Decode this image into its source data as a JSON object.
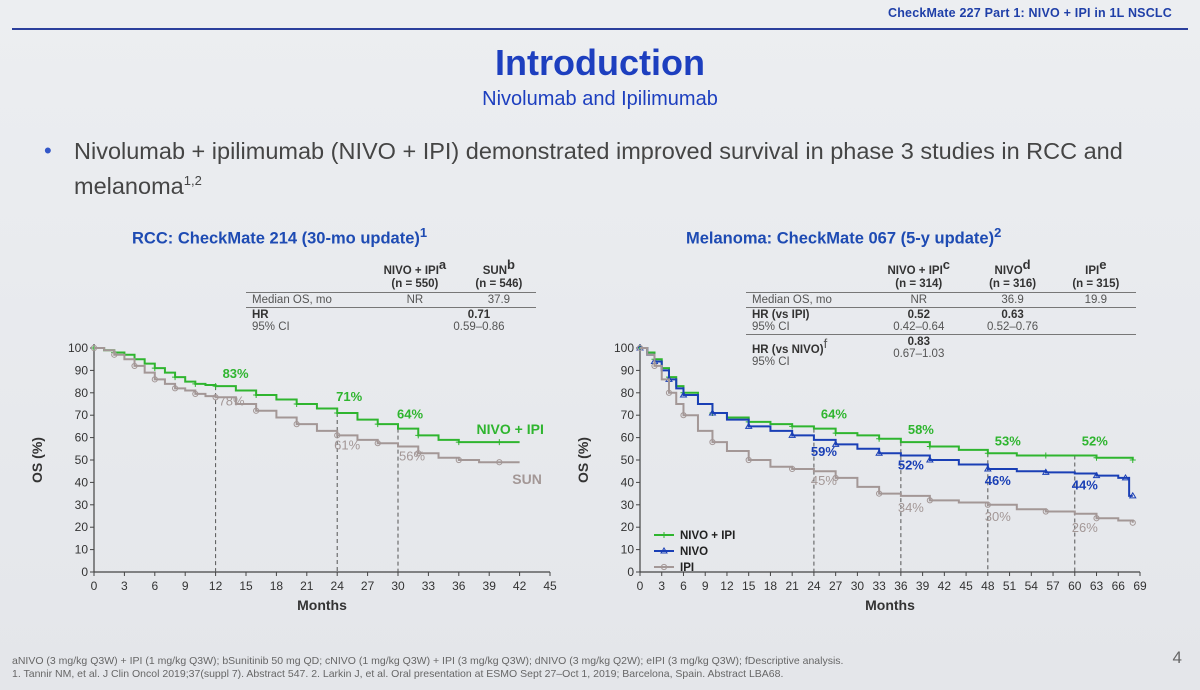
{
  "header": {
    "text": "CheckMate 227 Part 1: NIVO + IPI in 1L NSCLC"
  },
  "title": "Introduction",
  "subtitle": "Nivolumab and Ipilimumab",
  "bullet": {
    "text": "Nivolumab + ipilimumab (NIVO + IPI) demonstrated improved survival in phase 3 studies in RCC and melanoma",
    "sup": "1,2"
  },
  "rcc": {
    "title": "RCC: CheckMate 214 (30-mo update)",
    "title_sup": "1",
    "table": {
      "col1": "NIVO + IPI",
      "col1_sup": "a",
      "col1_n": "(n = 550)",
      "col2": "SUN",
      "col2_sup": "b",
      "col2_n": "(n = 546)",
      "row1_label": "Median OS, mo",
      "row1_v1": "NR",
      "row1_v2": "37.9",
      "hr_label": "HR",
      "hr_value": "0.71",
      "ci_label": "95% CI",
      "ci_value": "0.59–0.86"
    }
  },
  "mel": {
    "title": "Melanoma: CheckMate 067 (5-y update)",
    "title_sup": "2",
    "table": {
      "col1": "NIVO + IPI",
      "col1_sup": "c",
      "col1_n": "(n = 314)",
      "col2": "NIVO",
      "col2_sup": "d",
      "col2_n": "(n = 316)",
      "col3": "IPI",
      "col3_sup": "e",
      "col3_n": "(n = 315)",
      "row1_label": "Median OS, mo",
      "row1_v1": "NR",
      "row1_v2": "36.9",
      "row1_v3": "19.9",
      "hr1_label": "HR (vs IPI)",
      "hr1_v1": "0.52",
      "hr1_v2": "0.63",
      "ci1_label": "95% CI",
      "ci1_v1": "0.42–0.64",
      "ci1_v2": "0.52–0.76",
      "hr2_label": "HR (vs NIVO)",
      "hr2_sup": "f",
      "hr2_v1": "0.83",
      "ci2_label": "95% CI",
      "ci2_v1": "0.67–1.03"
    }
  },
  "chart_data": [
    {
      "type": "line",
      "title": "RCC: CheckMate 214 (30-mo update)",
      "xlabel": "Months",
      "ylabel": "OS (%)",
      "xlim": [
        0,
        45
      ],
      "ylim": [
        0,
        100
      ],
      "xticks": [
        0,
        3,
        6,
        9,
        12,
        15,
        18,
        21,
        24,
        27,
        30,
        33,
        36,
        39,
        42,
        45
      ],
      "yticks": [
        0,
        10,
        20,
        30,
        40,
        50,
        60,
        70,
        80,
        90,
        100
      ],
      "landmarks": [
        12,
        24,
        30
      ],
      "series": [
        {
          "name": "NIVO + IPI",
          "color": "#2fb52f",
          "x": [
            0,
            1,
            2,
            3,
            4,
            5,
            6,
            7,
            8,
            9,
            10,
            11,
            12,
            14,
            16,
            18,
            20,
            22,
            24,
            26,
            28,
            30,
            32,
            34,
            36,
            38,
            40,
            42
          ],
          "y": [
            100,
            99,
            98,
            97,
            95,
            93,
            91,
            89,
            87,
            85,
            84,
            83.5,
            83,
            81,
            79,
            77,
            75,
            73,
            71,
            68,
            66,
            64,
            61,
            59,
            58,
            58,
            58,
            58
          ]
        },
        {
          "name": "SUN",
          "color": "#a39796",
          "x": [
            0,
            1,
            2,
            3,
            4,
            5,
            6,
            7,
            8,
            9,
            10,
            11,
            12,
            14,
            16,
            18,
            20,
            22,
            24,
            26,
            28,
            30,
            32,
            34,
            36,
            38,
            40,
            42
          ],
          "y": [
            100,
            99,
            97,
            95,
            92,
            89,
            86,
            84,
            82,
            81,
            79.5,
            78.5,
            78,
            75,
            72,
            69,
            66,
            63,
            61,
            59,
            57.5,
            56,
            53,
            51,
            50,
            49,
            49,
            49
          ]
        }
      ],
      "annotations": [
        {
          "text": "83%",
          "series": "NIVO + IPI",
          "x": 12
        },
        {
          "text": "78%",
          "series": "SUN",
          "x": 12
        },
        {
          "text": "71%",
          "series": "NIVO + IPI",
          "x": 24
        },
        {
          "text": "61%",
          "series": "SUN",
          "x": 24
        },
        {
          "text": "64%",
          "series": "NIVO + IPI",
          "x": 30
        },
        {
          "text": "56%",
          "series": "SUN",
          "x": 30
        }
      ]
    },
    {
      "type": "line",
      "title": "Melanoma: CheckMate 067 (5-y update)",
      "xlabel": "Months",
      "ylabel": "OS (%)",
      "xlim": [
        0,
        69
      ],
      "ylim": [
        0,
        100
      ],
      "xticks": [
        0,
        3,
        6,
        9,
        12,
        15,
        18,
        21,
        24,
        27,
        30,
        33,
        36,
        39,
        42,
        45,
        48,
        51,
        54,
        57,
        60,
        63,
        66,
        69
      ],
      "yticks": [
        0,
        10,
        20,
        30,
        40,
        50,
        60,
        70,
        80,
        90,
        100
      ],
      "landmarks": [
        24,
        36,
        48,
        60
      ],
      "legend": "bottom-left",
      "series": [
        {
          "name": "NIVO + IPI",
          "color": "#2fb52f",
          "x": [
            0,
            1,
            2,
            3,
            4,
            5,
            6,
            8,
            10,
            12,
            15,
            18,
            21,
            24,
            27,
            30,
            33,
            36,
            40,
            44,
            48,
            52,
            56,
            60,
            63,
            66,
            68
          ],
          "y": [
            100,
            98,
            95,
            91,
            87,
            83,
            80,
            75,
            71,
            69,
            67,
            66,
            65,
            64,
            62,
            61,
            59.5,
            58,
            56,
            54.5,
            53,
            52,
            52,
            52,
            51,
            51,
            50
          ]
        },
        {
          "name": "NIVO",
          "color": "#1a3fb5",
          "x": [
            0,
            1,
            2,
            3,
            4,
            5,
            6,
            8,
            10,
            12,
            15,
            18,
            21,
            24,
            27,
            30,
            33,
            36,
            40,
            44,
            48,
            52,
            56,
            60,
            63,
            66,
            67,
            67.5,
            68
          ],
          "y": [
            100,
            97,
            94,
            90,
            86,
            82,
            79,
            75,
            71,
            68,
            65,
            63,
            61,
            59,
            57,
            55,
            53,
            52,
            50,
            48,
            46,
            45,
            44.5,
            44,
            43,
            42,
            42,
            34,
            34
          ]
        },
        {
          "name": "IPI",
          "color": "#a39796",
          "x": [
            0,
            1,
            2,
            3,
            4,
            5,
            6,
            8,
            10,
            12,
            15,
            18,
            21,
            24,
            27,
            30,
            33,
            36,
            40,
            44,
            48,
            52,
            56,
            60,
            63,
            66,
            68
          ],
          "y": [
            100,
            97,
            92,
            86,
            80,
            75,
            70,
            63,
            58,
            54,
            50,
            47,
            46,
            45,
            42,
            38,
            35,
            34,
            32,
            31,
            30,
            28,
            27,
            26,
            24,
            23,
            22
          ]
        }
      ],
      "annotations": [
        {
          "text": "64%",
          "series": "NIVO + IPI",
          "x": 24
        },
        {
          "text": "59%",
          "series": "NIVO",
          "x": 24
        },
        {
          "text": "45%",
          "series": "IPI",
          "x": 24
        },
        {
          "text": "58%",
          "series": "NIVO + IPI",
          "x": 36
        },
        {
          "text": "52%",
          "series": "NIVO",
          "x": 36
        },
        {
          "text": "34%",
          "series": "IPI",
          "x": 36
        },
        {
          "text": "53%",
          "series": "NIVO + IPI",
          "x": 48
        },
        {
          "text": "46%",
          "series": "NIVO",
          "x": 48
        },
        {
          "text": "30%",
          "series": "IPI",
          "x": 48
        },
        {
          "text": "52%",
          "series": "NIVO + IPI",
          "x": 60
        },
        {
          "text": "44%",
          "series": "NIVO",
          "x": 60
        },
        {
          "text": "26%",
          "series": "IPI",
          "x": 60
        }
      ]
    }
  ],
  "footer": {
    "line1": "aNIVO (3 mg/kg Q3W) + IPI (1 mg/kg Q3W); bSunitinib 50 mg QD; cNIVO (1 mg/kg Q3W) + IPI (3 mg/kg Q3W); dNIVO (3 mg/kg Q2W); eIPI (3 mg/kg Q3W); fDescriptive analysis.",
    "line2": "1. Tannir NM, et al. J Clin Oncol 2019;37(suppl 7). Abstract 547. 2. Larkin J, et al. Oral presentation at ESMO Sept 27–Oct 1, 2019; Barcelona, Spain. Abstract LBA68."
  },
  "page_number": "4"
}
